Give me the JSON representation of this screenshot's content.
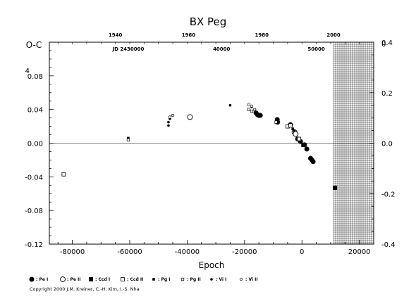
{
  "chart_data": {
    "type": "scatter",
    "title": "BX Peg",
    "xlabel": "Epoch",
    "ylabel": "O-C",
    "xlim": [
      -88000,
      25000
    ],
    "ylim": [
      -0.12,
      0.12
    ],
    "y2lim": [
      -0.4,
      0.4
    ],
    "grid": false,
    "x_ticks": [
      "-80000",
      "-60000",
      "-40000",
      "-20000",
      "0",
      "20000"
    ],
    "x_tick_values": [
      -80000,
      -60000,
      -40000,
      -20000,
      0,
      20000
    ],
    "y_ticks": [
      "-0.12",
      "-0.08",
      "-0.04",
      "0.00",
      "0.04",
      "0.08"
    ],
    "y_tick_values": [
      -0.12,
      -0.08,
      -0.04,
      0.0,
      0.04,
      0.08
    ],
    "y2_ticks": [
      "-0.4",
      "-0.2",
      "0.0",
      "0.2",
      "0.4"
    ],
    "y2_tick_values": [
      -0.4,
      -0.2,
      0.0,
      0.2,
      0.4
    ],
    "top_year_labels": [
      {
        "text": "1940",
        "epoch": -65000
      },
      {
        "text": "1960",
        "epoch": -39500
      },
      {
        "text": "1980",
        "epoch": -14000
      },
      {
        "text": "2000",
        "epoch": 11000
      }
    ],
    "top_jd_labels": [
      {
        "text": "JD 2430000",
        "epoch": -60500
      },
      {
        "text": "40000",
        "epoch": -28000
      },
      {
        "text": "50000",
        "epoch": 5000
      }
    ],
    "left_top_extra": "4",
    "right_top_extra": "0",
    "future_band": {
      "from_epoch": 11000,
      "to_epoch": 25000,
      "pattern": "grid"
    },
    "legend": [
      {
        "label": ": Pe I",
        "marker": "filled-circle-large"
      },
      {
        "label": ": Pe II",
        "marker": "open-circle-large"
      },
      {
        "label": ": Ccd I",
        "marker": "filled-square"
      },
      {
        "label": ": Ccd II",
        "marker": "open-square"
      },
      {
        "label": ": Pg I",
        "marker": "filled-small-square"
      },
      {
        "label": ": Pg II",
        "marker": "open-small-square"
      },
      {
        "label": ": Vi I",
        "marker": "filled-dot"
      },
      {
        "label": ": Vi II",
        "marker": "open-dot"
      }
    ],
    "series": [
      {
        "marker": "filled-circle-large",
        "points": [
          [
            -8500,
            0.025
          ],
          [
            -8600,
            0.028
          ],
          [
            -4000,
            0.022
          ],
          [
            -1500,
            0.005
          ],
          [
            -500,
            0.002
          ],
          [
            900,
            -0.002
          ],
          [
            1700,
            -0.007
          ],
          [
            3000,
            -0.018
          ],
          [
            3500,
            -0.02
          ],
          [
            3900,
            -0.022
          ],
          [
            -16000,
            0.036
          ],
          [
            -15500,
            0.034
          ],
          [
            -15000,
            0.033
          ],
          [
            -14500,
            0.033
          ]
        ]
      },
      {
        "marker": "open-circle-large",
        "points": [
          [
            -39000,
            0.031
          ],
          [
            -2600,
            0.013
          ],
          [
            -2200,
            0.011
          ]
        ]
      },
      {
        "marker": "filled-square",
        "points": [
          [
            11500,
            -0.053
          ],
          [
            500,
            -0.002
          ]
        ]
      },
      {
        "marker": "open-square",
        "points": [
          [
            -83000,
            -0.037
          ],
          [
            -5000,
            0.02
          ],
          [
            -4000,
            0.021
          ],
          [
            -1000,
            0.005
          ]
        ]
      },
      {
        "marker": "filled-small-square",
        "points": [
          [
            -60500,
            0.006
          ],
          [
            -3200,
            0.017
          ],
          [
            -2700,
            0.015
          ]
        ]
      },
      {
        "marker": "open-small-square",
        "points": [
          [
            -60500,
            0.004
          ],
          [
            -18500,
            0.04
          ],
          [
            -17500,
            0.038
          ],
          [
            -9000,
            0.025
          ]
        ]
      },
      {
        "marker": "filled-dot",
        "points": [
          [
            -46500,
            0.021
          ],
          [
            -46500,
            0.025
          ],
          [
            -46000,
            0.029
          ],
          [
            -25000,
            0.045
          ],
          [
            -17500,
            0.043
          ]
        ]
      },
      {
        "marker": "open-dot",
        "points": [
          [
            -46000,
            0.031
          ],
          [
            -45000,
            0.033
          ],
          [
            -18500,
            0.046
          ],
          [
            -17500,
            0.044
          ],
          [
            -16500,
            0.04
          ]
        ]
      }
    ]
  },
  "copyright": "Copyright 2000 J.M. Kreiner, C.-H. Kim, I.-S. Nha"
}
